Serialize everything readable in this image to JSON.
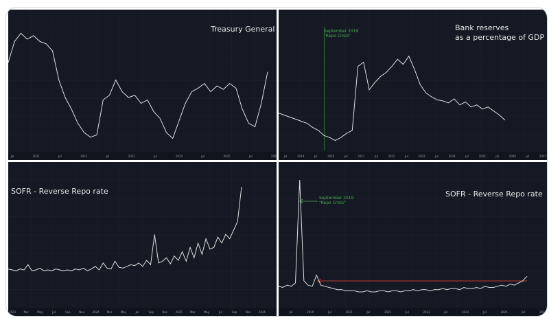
{
  "chart_data": [
    {
      "type": "line",
      "title": "Treasury General Accou",
      "line_color": "#e0e0e0",
      "background": "#151924",
      "grid": true,
      "x_ticks": [
        "Jul",
        "2021",
        "Jul",
        "2022",
        "Jul",
        "2023",
        "Jul",
        "2024",
        "Jul",
        "2025",
        "Jul",
        "2026"
      ],
      "values": [
        70,
        88,
        95,
        90,
        93,
        88,
        86,
        80,
        55,
        40,
        30,
        18,
        10,
        6,
        8,
        38,
        42,
        55,
        45,
        40,
        42,
        35,
        38,
        28,
        22,
        10,
        5,
        20,
        35,
        45,
        48,
        52,
        45,
        50,
        47,
        52,
        48,
        30,
        18,
        15,
        35,
        62
      ]
    },
    {
      "type": "line",
      "title_lines": [
        "Bank reserves",
        "as a percentage of GDP"
      ],
      "annotation": [
        "September 2019",
        "\"Repo Crisis\""
      ],
      "annotation_color": "#4caf50",
      "line_color": "#e0e0e0",
      "background": "#151924",
      "grid": true,
      "x_ticks": [
        "Jul",
        "2019",
        "Jul",
        "2020",
        "Jul",
        "2021",
        "Jul",
        "2022",
        "Jul",
        "2023",
        "Jul",
        "2024",
        "Jul",
        "2025",
        "Jul",
        "2026",
        "Jul",
        "2027"
      ],
      "values": [
        32,
        30,
        28,
        26,
        24,
        22,
        18,
        15,
        10,
        8,
        5,
        8,
        12,
        15,
        78,
        82,
        55,
        62,
        68,
        72,
        78,
        85,
        80,
        88,
        75,
        60,
        52,
        48,
        45,
        44,
        42,
        46,
        40,
        43,
        38,
        40,
        36,
        38,
        34,
        30,
        25
      ]
    },
    {
      "type": "line",
      "title": "SOFR - Reverse Repo rate",
      "line_color": "#e0e0e0",
      "background": "#151924",
      "grid": true,
      "x_ticks": [
        "2023",
        "Mar",
        "May",
        "Jul",
        "Sep",
        "Nov",
        "2024",
        "Mar",
        "May",
        "Jul",
        "Sep",
        "Nov",
        "2025",
        "Mar",
        "May",
        "Jul",
        "Sep",
        "Nov",
        "2026"
      ],
      "values": [
        5,
        4,
        3,
        5,
        4,
        10,
        3,
        4,
        6,
        3,
        4,
        3,
        5,
        4,
        3,
        4,
        3,
        5,
        4,
        6,
        3,
        5,
        8,
        4,
        12,
        6,
        5,
        14,
        7,
        6,
        8,
        10,
        9,
        12,
        8,
        15,
        10,
        45,
        12,
        14,
        18,
        11,
        20,
        15,
        25,
        14,
        30,
        18,
        35,
        22,
        40,
        28,
        30,
        42,
        35,
        45,
        40,
        50,
        60,
        100
      ]
    },
    {
      "type": "line",
      "title": "SOFR - Reverse Repo rate",
      "annotation": [
        "September 2019",
        "\"Repo Crisis\""
      ],
      "annotation_color": "#4caf50",
      "arrow_color": "#c0392b",
      "line_color": "#e0e0e0",
      "background": "#151924",
      "grid": true,
      "x_ticks": [
        "Jul",
        "2020",
        "Jul",
        "2021",
        "Jul",
        "2022",
        "Jul",
        "2023",
        "Jul",
        "2024",
        "Jul",
        "2025",
        "Jul",
        "2026"
      ],
      "values": [
        5,
        4,
        6,
        5,
        8,
        100,
        10,
        6,
        5,
        15,
        6,
        5,
        4,
        3,
        2,
        2,
        1,
        1,
        1,
        0,
        0,
        1,
        0,
        0,
        1,
        1,
        0,
        1,
        1,
        0,
        1,
        1,
        2,
        1,
        2,
        2,
        1,
        2,
        2,
        3,
        2,
        3,
        3,
        2,
        4,
        3,
        3,
        4,
        3,
        5,
        4,
        4,
        5,
        6,
        5,
        7,
        6,
        8,
        10,
        14
      ]
    }
  ]
}
